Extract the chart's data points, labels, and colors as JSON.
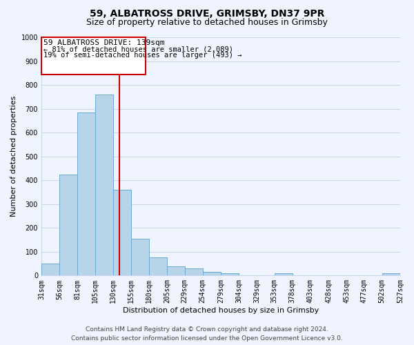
{
  "title": "59, ALBATROSS DRIVE, GRIMSBY, DN37 9PR",
  "subtitle": "Size of property relative to detached houses in Grimsby",
  "xlabel": "Distribution of detached houses by size in Grimsby",
  "ylabel": "Number of detached properties",
  "bin_edges": [
    31,
    56,
    81,
    105,
    130,
    155,
    180,
    205,
    229,
    254,
    279,
    304,
    329,
    353,
    378,
    403,
    428,
    453,
    477,
    502,
    527
  ],
  "bar_heights": [
    50,
    425,
    685,
    760,
    360,
    155,
    75,
    40,
    30,
    15,
    10,
    0,
    0,
    10,
    0,
    0,
    0,
    0,
    0,
    10
  ],
  "bar_color": "#b8d4e8",
  "bar_edge_color": "#6aaad4",
  "property_line_x": 139,
  "property_line_color": "#cc0000",
  "annotation_title": "59 ALBATROSS DRIVE: 139sqm",
  "annotation_line1": "← 81% of detached houses are smaller (2,089)",
  "annotation_line2": "19% of semi-detached houses are larger (493) →",
  "annotation_box_color": "#cc0000",
  "ylim": [
    0,
    1000
  ],
  "yticks": [
    0,
    100,
    200,
    300,
    400,
    500,
    600,
    700,
    800,
    900,
    1000
  ],
  "xtick_labels": [
    "31sqm",
    "56sqm",
    "81sqm",
    "105sqm",
    "130sqm",
    "155sqm",
    "180sqm",
    "205sqm",
    "229sqm",
    "254sqm",
    "279sqm",
    "304sqm",
    "329sqm",
    "353sqm",
    "378sqm",
    "403sqm",
    "428sqm",
    "453sqm",
    "477sqm",
    "502sqm",
    "527sqm"
  ],
  "footer_line1": "Contains HM Land Registry data © Crown copyright and database right 2024.",
  "footer_line2": "Contains public sector information licensed under the Open Government Licence v3.0.",
  "bg_color": "#f0f4ff",
  "grid_color": "#c8d8e8",
  "title_fontsize": 10,
  "subtitle_fontsize": 9,
  "axis_label_fontsize": 8,
  "tick_fontsize": 7,
  "footer_fontsize": 6.5,
  "ann_title_fontsize": 8,
  "ann_text_fontsize": 7.5
}
